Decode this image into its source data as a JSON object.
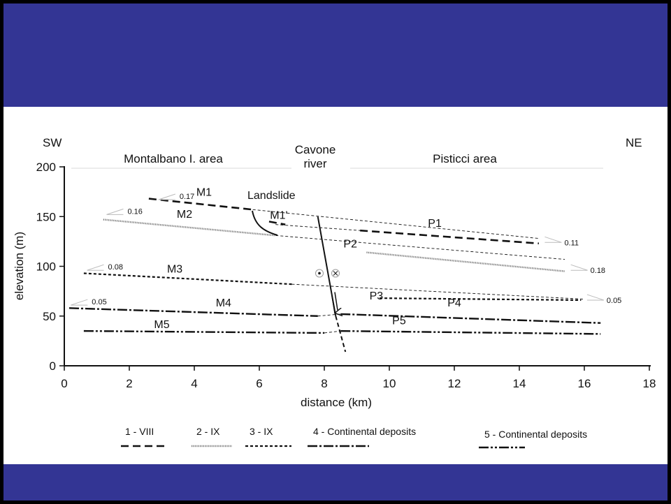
{
  "figure": {
    "orientation": {
      "left": "SW",
      "right": "NE"
    },
    "areas": {
      "left": "Montalbano I. area",
      "center_line1": "Cavone",
      "center_line2": "river",
      "right": "Pisticci area"
    },
    "landslide_label": "Landslide",
    "x_axis_label": "distance (km)",
    "y_axis_label": "elevation (m)",
    "x_ticks": [
      0,
      2,
      4,
      6,
      8,
      10,
      12,
      14,
      16,
      18
    ],
    "y_ticks": [
      0,
      50,
      100,
      150,
      200
    ],
    "x_range": [
      0,
      18
    ],
    "y_range": [
      0,
      200
    ],
    "terraces": [
      {
        "id": "M1",
        "style": "1",
        "x1": 2.6,
        "y1": 168,
        "x2": 5.8,
        "y2": 157,
        "label_x": 4.3,
        "label_y": 168
      },
      {
        "id": "M1'",
        "style": "1",
        "x1": 6.3,
        "y1": 145,
        "x2": 6.8,
        "y2": 142,
        "label_x": 6.6,
        "label_y": 145
      },
      {
        "id": "M2",
        "style": "2",
        "x1": 1.2,
        "y1": 147,
        "x2": 6.5,
        "y2": 131,
        "label_x": 3.7,
        "label_y": 146
      },
      {
        "id": "M3",
        "style": "3",
        "x1": 0.6,
        "y1": 93,
        "x2": 7.0,
        "y2": 82,
        "label_x": 3.4,
        "label_y": 91
      },
      {
        "id": "M4",
        "style": "4",
        "x1": 0.15,
        "y1": 58,
        "x2": 7.8,
        "y2": 50,
        "label_x": 4.9,
        "label_y": 57
      },
      {
        "id": "M5",
        "style": "5",
        "x1": 0.6,
        "y1": 35,
        "x2": 8.0,
        "y2": 33,
        "label_x": 3.0,
        "label_y": 35
      },
      {
        "id": "P1",
        "style": "1",
        "x1": 9.1,
        "y1": 136,
        "x2": 14.6,
        "y2": 123,
        "label_x": 11.4,
        "label_y": 137
      },
      {
        "id": "P2",
        "style": "2",
        "x1": 9.3,
        "y1": 114,
        "x2": 15.4,
        "y2": 95,
        "label_x": 8.8,
        "label_y": 116
      },
      {
        "id": "P3",
        "style": "3",
        "x1": 9.7,
        "y1": 68,
        "x2": 15.9,
        "y2": 66,
        "label_x": 9.6,
        "label_y": 64
      },
      {
        "id": "P4",
        "style": "4",
        "x1": 8.5,
        "y1": 52,
        "x2": 16.5,
        "y2": 43,
        "label_x": 12.0,
        "label_y": 57
      },
      {
        "id": "P5",
        "style": "5",
        "x1": 8.5,
        "y1": 35,
        "x2": 16.5,
        "y2": 32,
        "label_x": 10.3,
        "label_y": 39
      }
    ],
    "correlation_lines": [
      {
        "x1": 5.8,
        "y1": 157,
        "x2": 14.6,
        "y2": 128
      },
      {
        "x1": 6.5,
        "y1": 142,
        "x2": 9.1,
        "y2": 136
      },
      {
        "x1": 6.5,
        "y1": 131,
        "x2": 15.4,
        "y2": 107
      },
      {
        "x1": 7.0,
        "y1": 82,
        "x2": 16.0,
        "y2": 67
      },
      {
        "x1": 7.8,
        "y1": 50,
        "x2": 8.5,
        "y2": 52
      },
      {
        "x1": 8.0,
        "y1": 33,
        "x2": 8.5,
        "y2": 35
      }
    ],
    "fault": {
      "x1": 7.8,
      "y1": 150,
      "x2": 8.35,
      "y2": 50,
      "x3": 8.65,
      "y3": 14
    },
    "slopes": [
      {
        "value": "0.17",
        "x": 2.9,
        "y": 167,
        "side": "left"
      },
      {
        "value": "0.16",
        "x": 1.3,
        "y": 152,
        "side": "left"
      },
      {
        "value": "0.08",
        "x": 0.7,
        "y": 96,
        "side": "left"
      },
      {
        "value": "0.05",
        "x": 0.2,
        "y": 61,
        "side": "left"
      },
      {
        "value": "0.11",
        "x": 15.3,
        "y": 124,
        "side": "right"
      },
      {
        "value": "0.18",
        "x": 16.1,
        "y": 96,
        "side": "right"
      },
      {
        "value": "0.05",
        "x": 16.6,
        "y": 66,
        "side": "right"
      }
    ],
    "legend": [
      {
        "label": "1 - VIII",
        "style": "1"
      },
      {
        "label": "2 - IX",
        "style": "2"
      },
      {
        "label": "3 - IX",
        "style": "3"
      },
      {
        "label": "4 - Continental deposits",
        "style": "4"
      },
      {
        "label": "5 - Continental deposits",
        "style": "5"
      }
    ],
    "colors": {
      "band": "#333594",
      "line": "#111111",
      "dotted_line": "#777777"
    }
  }
}
